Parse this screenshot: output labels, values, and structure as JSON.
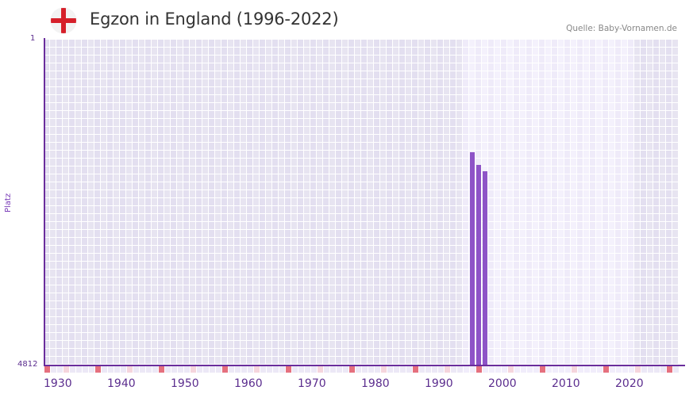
{
  "header": {
    "title": "Egzon in England (1996-2022)",
    "source": "Quelle: Baby-Vornamen.de",
    "flag_icon": "england-flag-icon"
  },
  "colors": {
    "accent": "#6a2d9c",
    "bar": "#8e54c7",
    "marker_decade": "#e5707e",
    "marker_half": "#f5d5dd",
    "bg_dark": "#e3dff0",
    "bg_light": "#efebf9"
  },
  "chart_data": {
    "type": "bar",
    "title": "Egzon in England (1996-2022)",
    "xlabel": "",
    "ylabel": "Platz",
    "y_reversed": true,
    "ylim": [
      1,
      4812
    ],
    "yticks": [
      "1",
      "4812"
    ],
    "xlim": [
      1930,
      2029
    ],
    "xticks": [
      "1930",
      "1940",
      "1950",
      "1960",
      "1970",
      "1980",
      "1990",
      "2000",
      "2010",
      "2020"
    ],
    "highlight_range": [
      1996,
      2022
    ],
    "grid": true,
    "x": [
      1997,
      1998,
      1999
    ],
    "values": [
      1680,
      1870,
      1960
    ],
    "series": [
      {
        "name": "Platz",
        "x": [
          1997,
          1998,
          1999
        ],
        "values": [
          1680,
          1870,
          1960
        ]
      }
    ]
  },
  "axis": {
    "y_top": "1",
    "y_bottom": "4812",
    "y_label": "Platz",
    "x_labels": [
      "1930",
      "1940",
      "1950",
      "1960",
      "1970",
      "1980",
      "1990",
      "2000",
      "2010",
      "2020"
    ]
  }
}
